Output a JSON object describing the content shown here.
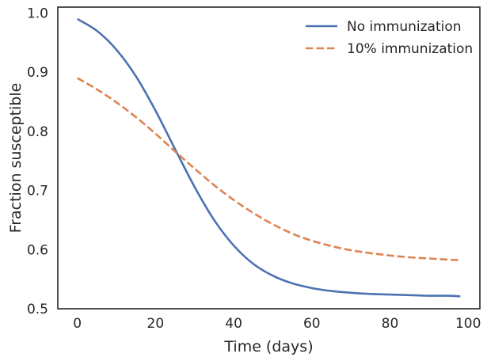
{
  "chart_data": {
    "type": "line",
    "xlabel": "Time (days)",
    "ylabel": "Fraction susceptible",
    "xlim": [
      -5,
      103
    ],
    "ylim": [
      0.5,
      1.01
    ],
    "xticks": [
      0,
      20,
      40,
      60,
      80,
      100
    ],
    "xtick_labels": [
      "0",
      "20",
      "40",
      "60",
      "80",
      "100"
    ],
    "yticks": [
      0.5,
      0.6,
      0.7,
      0.8,
      0.9,
      1.0
    ],
    "ytick_labels": [
      "0.5",
      "0.6",
      "0.7",
      "0.8",
      "0.9",
      "1.0"
    ],
    "grid": false,
    "legend_position": "top-right",
    "x": [
      0,
      5,
      10,
      15,
      20,
      25,
      30,
      35,
      40,
      45,
      50,
      55,
      60,
      65,
      70,
      75,
      80,
      85,
      90,
      95,
      98
    ],
    "series": [
      {
        "name": "No immunization",
        "color": "#4c72b0",
        "dash": "solid",
        "values": [
          0.99,
          0.97,
          0.938,
          0.893,
          0.835,
          0.77,
          0.706,
          0.65,
          0.607,
          0.576,
          0.556,
          0.543,
          0.535,
          0.53,
          0.527,
          0.525,
          0.524,
          0.523,
          0.522,
          0.522,
          0.521
        ]
      },
      {
        "name": "10% immunization",
        "color": "#dd8452",
        "dash": "dashed",
        "values": [
          0.89,
          0.871,
          0.849,
          0.824,
          0.796,
          0.766,
          0.737,
          0.709,
          0.684,
          0.662,
          0.643,
          0.627,
          0.615,
          0.606,
          0.599,
          0.594,
          0.59,
          0.587,
          0.585,
          0.583,
          0.582
        ]
      }
    ]
  }
}
